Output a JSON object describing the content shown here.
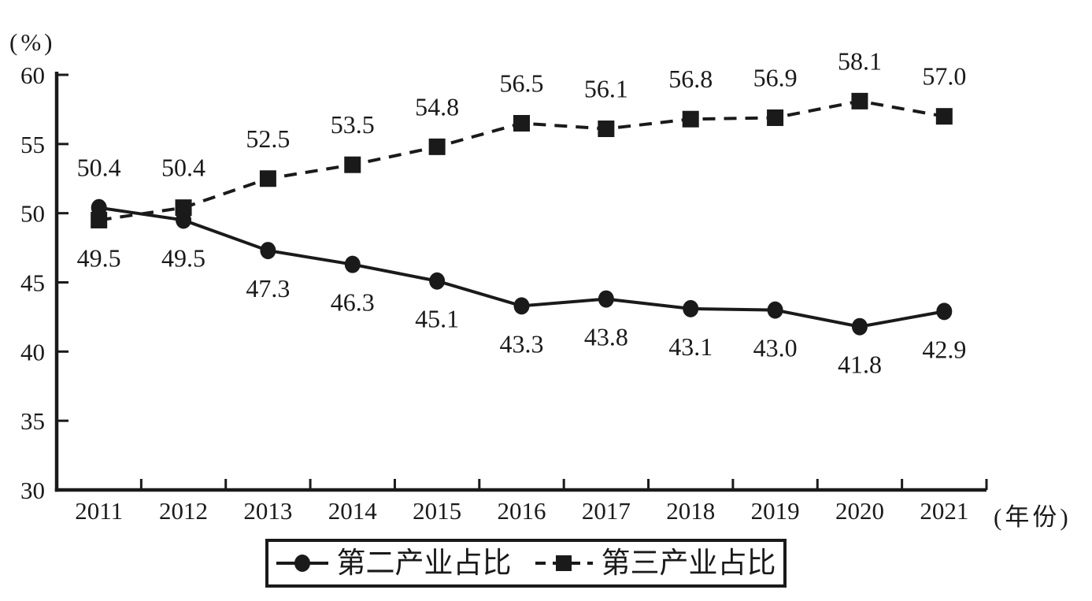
{
  "page": {
    "background": "#ffffff",
    "ink": "#1a1a1a"
  },
  "chart_data": {
    "type": "line",
    "title": "",
    "y_unit_label": "(%)",
    "x_unit_label": "(年份)",
    "categories": [
      "2011",
      "2012",
      "2013",
      "2014",
      "2015",
      "2016",
      "2017",
      "2018",
      "2019",
      "2020",
      "2021"
    ],
    "ylim": [
      30,
      60
    ],
    "yticks": [
      30,
      35,
      40,
      45,
      50,
      55,
      60
    ],
    "grid": false,
    "legend_position": "bottom-center",
    "series": [
      {
        "name": "第二产业占比",
        "marker": "circle",
        "line_style": "solid",
        "color": "#1a1a1a",
        "values": [
          50.4,
          49.5,
          47.3,
          46.3,
          45.1,
          43.3,
          43.8,
          43.1,
          43.0,
          41.8,
          42.9
        ],
        "labels": [
          "50.4",
          "49.5",
          "47.3",
          "46.3",
          "45.1",
          "43.3",
          "43.8",
          "43.1",
          "43.0",
          "41.8",
          "42.9"
        ],
        "label_positions": [
          "above",
          "below",
          "below",
          "below",
          "below",
          "below",
          "below",
          "below",
          "below",
          "below",
          "below"
        ]
      },
      {
        "name": "第三产业占比",
        "marker": "square",
        "line_style": "dashed",
        "color": "#1a1a1a",
        "values": [
          49.5,
          50.4,
          52.5,
          53.5,
          54.8,
          56.5,
          56.1,
          56.8,
          56.9,
          58.1,
          57.0
        ],
        "labels": [
          "49.5",
          "50.4",
          "52.5",
          "53.5",
          "54.8",
          "56.5",
          "56.1",
          "56.8",
          "56.9",
          "58.1",
          "57.0"
        ],
        "label_positions": [
          "below",
          "above",
          "above",
          "above",
          "above",
          "above",
          "above",
          "above",
          "above",
          "above",
          "above"
        ]
      }
    ]
  }
}
